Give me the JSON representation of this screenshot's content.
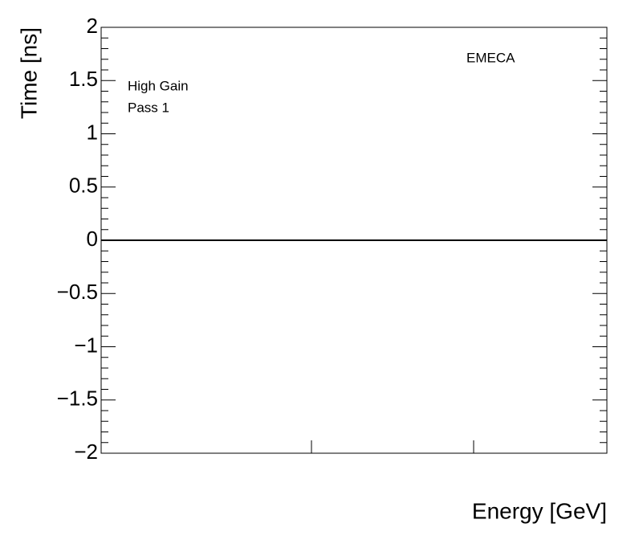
{
  "chart_data": {
    "type": "line",
    "annotations": [
      "High Gain",
      "Pass 1",
      "EMECA"
    ],
    "x_label": "Energy [GeV]",
    "y_label": "Time [ns]",
    "ylim": [
      -2,
      2
    ],
    "yticks": [
      {
        "value": -2,
        "label": "−2"
      },
      {
        "value": -1.5,
        "label": "−1.5"
      },
      {
        "value": -1,
        "label": "−1"
      },
      {
        "value": -0.5,
        "label": "−0.5"
      },
      0,
      0.5,
      1,
      1.5,
      2
    ],
    "reference_line": 0,
    "color": "#000000"
  }
}
